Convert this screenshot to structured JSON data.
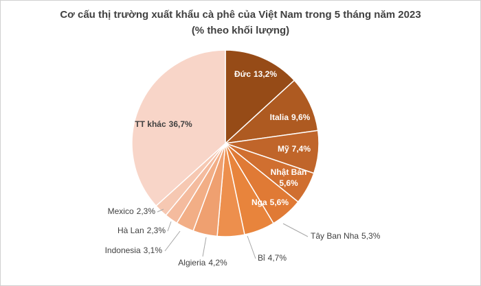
{
  "chart_data": {
    "type": "pie",
    "title": "Cơ cấu thị trường xuất khẩu cà phê của Việt Nam trong 5 tháng năm 2023",
    "subtitle": "(% theo khối lượng)",
    "categories": [
      "Đức",
      "Italia",
      "Mỹ",
      "Nhật Bản",
      "Nga",
      "Tây Ban Nha",
      "Bỉ",
      "Algieria",
      "Indonesia",
      "Hà Lan",
      "Mexico",
      "TT khác"
    ],
    "values": [
      13.2,
      9.6,
      7.4,
      5.6,
      5.6,
      5.3,
      4.7,
      4.2,
      3.1,
      2.3,
      2.3,
      36.7
    ],
    "value_labels": [
      "13,2%",
      "9,6%",
      "7,4%",
      "5,6%",
      "5,6%",
      "5,3%",
      "4,7%",
      "4,2%",
      "3,1%",
      "2,3%",
      "2,3%",
      "36,7%"
    ],
    "colors": [
      "#964B17",
      "#AE5A21",
      "#C0652A",
      "#D06F30",
      "#E07A35",
      "#E8843C",
      "#ED8F4D",
      "#EFA070",
      "#F2AE86",
      "#F4BB9E",
      "#F6C8B2",
      "#F8D5C8"
    ]
  }
}
